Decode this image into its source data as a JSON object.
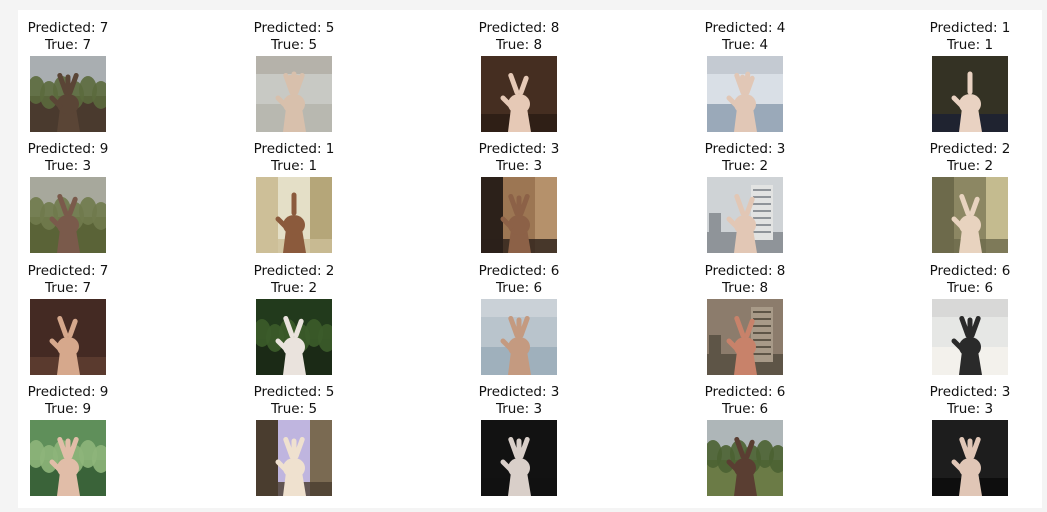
{
  "grid": {
    "rows": [
      [
        {
          "predicted": "Predicted: 7",
          "true": "True: 7",
          "palette": [
            "#a9aeb1",
            "#5b6a3d",
            "#4a3a2e"
          ],
          "hand": "#5a4536",
          "fingers": 3,
          "scene": "forest"
        },
        {
          "predicted": "Predicted: 5",
          "true": "True: 5",
          "palette": [
            "#c8c9c4",
            "#b8b8b0",
            "#a8a49a"
          ],
          "hand": "#d8c0ac",
          "fingers": 5,
          "scene": "sky"
        },
        {
          "predicted": "Predicted: 8",
          "true": "True: 8",
          "palette": [
            "#3e2a1f",
            "#4b3123",
            "#2f1f16"
          ],
          "hand": "#e6c9b6",
          "fingers": 2,
          "scene": "dark"
        },
        {
          "predicted": "Predicted: 4",
          "true": "True: 4",
          "palette": [
            "#d9dfe6",
            "#9aa9b9",
            "#b5bcc5"
          ],
          "hand": "#e1c7b6",
          "fingers": 4,
          "scene": "sky"
        },
        {
          "predicted": "Predicted: 1",
          "true": "True: 1",
          "palette": [
            "#2b2b21",
            "#3e3a28",
            "#1f2330"
          ],
          "hand": "#e9d2c2",
          "fingers": 1,
          "scene": "dark"
        }
      ],
      [
        {
          "predicted": "Predicted: 9",
          "true": "True: 3",
          "palette": [
            "#a7a89c",
            "#707a4c",
            "#5a6337"
          ],
          "hand": "#7a5a4b",
          "fingers": 2,
          "scene": "forest"
        },
        {
          "predicted": "Predicted: 1",
          "true": "True: 1",
          "palette": [
            "#e4dfc7",
            "#cdbf98",
            "#b5a679"
          ],
          "hand": "#8b5a3c",
          "fingers": 1,
          "scene": "room"
        },
        {
          "predicted": "Predicted: 3",
          "true": "True: 3",
          "palette": [
            "#9c7653",
            "#2c211a",
            "#b5916b"
          ],
          "hand": "#8c6147",
          "fingers": 3,
          "scene": "room"
        },
        {
          "predicted": "Predicted: 3",
          "true": "True: 2",
          "palette": [
            "#cfd3d6",
            "#8f9499",
            "#e2e3e2"
          ],
          "hand": "#e2c7b5",
          "fingers": 2,
          "scene": "city"
        },
        {
          "predicted": "Predicted: 2",
          "true": "True: 2",
          "palette": [
            "#8c8763",
            "#6d6a4b",
            "#c4bb8f"
          ],
          "hand": "#e8d3bf",
          "fingers": 2,
          "scene": "room"
        }
      ],
      [
        {
          "predicted": "Predicted: 7",
          "true": "True: 7",
          "palette": [
            "#4e3128",
            "#3a231d",
            "#5a3a2e"
          ],
          "hand": "#d6a88c",
          "fingers": 2,
          "scene": "dark"
        },
        {
          "predicted": "Predicted: 2",
          "true": "True: 2",
          "palette": [
            "#223a1c",
            "#3c5c2a",
            "#1b2a16"
          ],
          "hand": "#eae3dd",
          "fingers": 2,
          "scene": "forest"
        },
        {
          "predicted": "Predicted: 6",
          "true": "True: 6",
          "palette": [
            "#b9c4cc",
            "#9fb0bc",
            "#d5dade"
          ],
          "hand": "#c49a80",
          "fingers": 3,
          "scene": "sky"
        },
        {
          "predicted": "Predicted: 8",
          "true": "True: 8",
          "palette": [
            "#8c7c6c",
            "#5e5547",
            "#a89a88"
          ],
          "hand": "#c8826a",
          "fingers": 2,
          "scene": "city"
        },
        {
          "predicted": "Predicted: 6",
          "true": "True: 6",
          "palette": [
            "#e6e7e5",
            "#f3f1ec",
            "#cfcfcd"
          ],
          "hand": "#2a2a2a",
          "fingers": 3,
          "scene": "sky"
        }
      ],
      [
        {
          "predicted": "Predicted: 9",
          "true": "True: 9",
          "palette": [
            "#5f8f5a",
            "#8eb57a",
            "#3a6339"
          ],
          "hand": "#e1bda8",
          "fingers": 3,
          "scene": "forest"
        },
        {
          "predicted": "Predicted: 5",
          "true": "True: 5",
          "palette": [
            "#bfb5df",
            "#4a3d2f",
            "#7a6a52"
          ],
          "hand": "#efe1cf",
          "fingers": 3,
          "scene": "room"
        },
        {
          "predicted": "Predicted: 3",
          "true": "True: 3",
          "palette": [
            "#0b0b0b",
            "#1a1a1a",
            "#111111"
          ],
          "hand": "#d9cfc9",
          "fingers": 3,
          "scene": "dark"
        },
        {
          "predicted": "Predicted: 6",
          "true": "True: 6",
          "palette": [
            "#aeb6b8",
            "#4b6232",
            "#6b7b46"
          ],
          "hand": "#5a3e32",
          "fingers": 2,
          "scene": "forest"
        },
        {
          "predicted": "Predicted: 3",
          "true": "True: 3",
          "palette": [
            "#141414",
            "#262626",
            "#0e0e0e"
          ],
          "hand": "#e0c6b6",
          "fingers": 3,
          "scene": "dark"
        }
      ]
    ]
  }
}
